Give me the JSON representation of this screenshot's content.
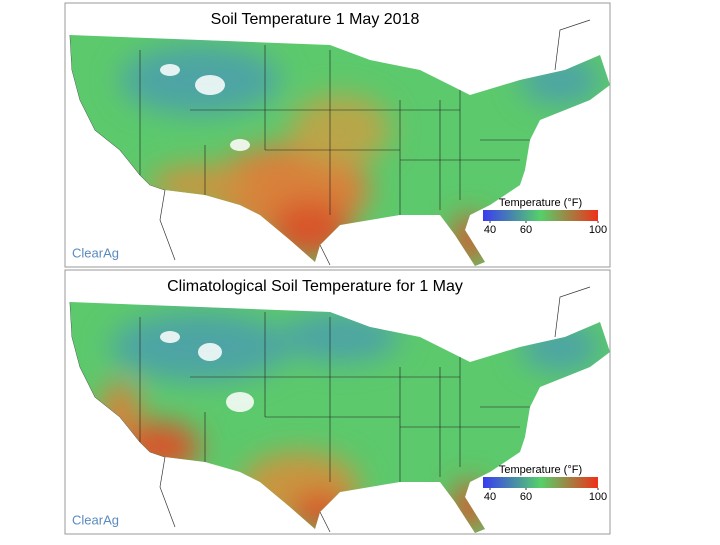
{
  "maps": [
    {
      "title": "Soil Temperature 1 May 2018",
      "logo": "ClearAg",
      "legend": {
        "title": "Temperature (°F)",
        "ticks": [
          40,
          60,
          100
        ],
        "colors": [
          "#3a3cf0",
          "#55d06a",
          "#f0301a"
        ]
      }
    },
    {
      "title": "Climatological Soil Temperature for 1 May",
      "logo": "ClearAg",
      "legend": {
        "title": "Temperature (°F)",
        "ticks": [
          40,
          60,
          100
        ],
        "colors": [
          "#3a3cf0",
          "#55d06a",
          "#f0301a"
        ]
      }
    }
  ]
}
